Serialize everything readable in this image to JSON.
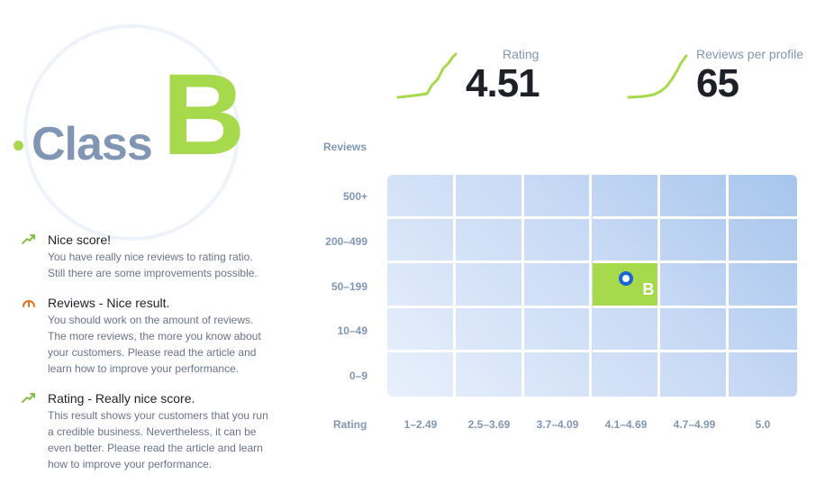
{
  "class_badge": {
    "word": "Class",
    "grade": "B"
  },
  "kpis": {
    "rating": {
      "label": "Rating",
      "value": "4.51"
    },
    "reviews_per_profile": {
      "label": "Reviews per profile",
      "value": "65"
    }
  },
  "feedback": [
    {
      "icon": "trend-up-icon",
      "title": "Nice score!",
      "text": [
        "You have really nice reviews to rating ratio.",
        "Still there are some improvements possible."
      ]
    },
    {
      "icon": "gauge-icon",
      "title": "Reviews - Nice result.",
      "text": [
        "You should work on the amount of reviews.",
        "The more reviews, the more you know about",
        "your customers. Please read the article and",
        "learn how to improve your performance."
      ]
    },
    {
      "icon": "trend-up-icon",
      "title": "Rating - Really nice score.",
      "text": [
        "This result shows your customers that you run",
        "a credible business. Nevertheless, it can be",
        "even better. Please read the article and learn",
        "how to improve your performance."
      ]
    }
  ],
  "matrix": {
    "y_title": "Reviews",
    "x_title": "Rating",
    "rows": [
      "500+",
      "200–499",
      "50–199",
      "10–49",
      "0–9"
    ],
    "cols": [
      "1–2.49",
      "2.5–3.69",
      "3.7–4.09",
      "4.1–4.69",
      "4.7–4.99",
      "5.0"
    ],
    "active": {
      "row": "50–199",
      "col": "4.1–4.69",
      "label": "B"
    }
  },
  "colors": {
    "accent": "#a6d94b",
    "muted": "#8196b5",
    "marker": "#1565d8"
  }
}
